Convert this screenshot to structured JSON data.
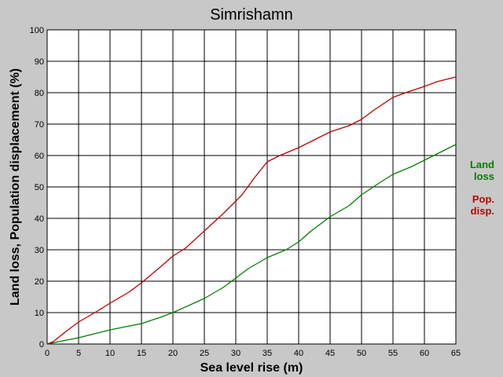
{
  "chart_data": {
    "type": "line",
    "title": "Simrishamn",
    "xlabel": "Sea level rise (m)",
    "ylabel": "Land loss, Population displacement (%)",
    "xlim": [
      0,
      65
    ],
    "ylim": [
      0,
      100
    ],
    "xticks": [
      0,
      5,
      10,
      15,
      20,
      25,
      30,
      35,
      40,
      45,
      50,
      55,
      60,
      65
    ],
    "yticks": [
      0,
      10,
      20,
      30,
      40,
      50,
      60,
      70,
      80,
      90,
      100
    ],
    "grid": true,
    "legend_position": "right",
    "series": [
      {
        "key": "land",
        "legend_lines": [
          "Land",
          "loss"
        ],
        "color": "#008000",
        "points": [
          [
            0,
            0
          ],
          [
            2,
            0.8
          ],
          [
            5,
            2
          ],
          [
            8,
            3.5
          ],
          [
            10,
            4.5
          ],
          [
            12,
            5.3
          ],
          [
            15,
            6.5
          ],
          [
            18,
            8.5
          ],
          [
            20,
            10
          ],
          [
            22,
            11.8
          ],
          [
            25,
            14.5
          ],
          [
            28,
            18
          ],
          [
            30,
            21
          ],
          [
            32,
            24
          ],
          [
            35,
            27.5
          ],
          [
            38,
            30
          ],
          [
            40,
            32.5
          ],
          [
            42,
            36
          ],
          [
            45,
            40.5
          ],
          [
            48,
            44
          ],
          [
            50,
            47.5
          ],
          [
            53,
            51.5
          ],
          [
            55,
            54
          ],
          [
            58,
            56.5
          ],
          [
            60,
            58.5
          ],
          [
            62,
            60.5
          ],
          [
            65,
            63.5
          ]
        ]
      },
      {
        "key": "pop",
        "legend_lines": [
          "Pop.",
          "disp."
        ],
        "color": "#c00000",
        "points": [
          [
            0,
            0
          ],
          [
            1,
            0.8
          ],
          [
            3,
            4
          ],
          [
            5,
            7
          ],
          [
            8,
            10.5
          ],
          [
            10,
            13
          ],
          [
            13,
            16.5
          ],
          [
            15,
            19.5
          ],
          [
            18,
            24.5
          ],
          [
            20,
            28
          ],
          [
            22,
            30.5
          ],
          [
            25,
            36
          ],
          [
            28,
            41.5
          ],
          [
            30,
            45.5
          ],
          [
            31,
            47.5
          ],
          [
            33,
            53
          ],
          [
            35,
            58
          ],
          [
            37,
            60
          ],
          [
            40,
            62.5
          ],
          [
            42,
            64.5
          ],
          [
            45,
            67.5
          ],
          [
            48,
            69.5
          ],
          [
            50,
            71.5
          ],
          [
            52,
            74.5
          ],
          [
            55,
            78.5
          ],
          [
            57,
            80
          ],
          [
            60,
            82
          ],
          [
            62,
            83.5
          ],
          [
            65,
            85
          ]
        ]
      }
    ]
  }
}
